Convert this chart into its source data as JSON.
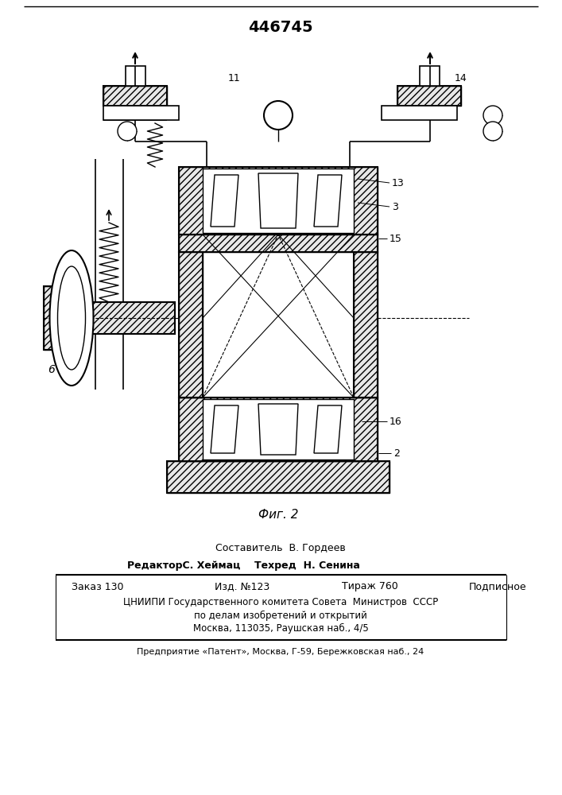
{
  "patent_number": "446745",
  "fig_label": "Фиг. 2",
  "sestavitel_label": "Составитель",
  "sestavitel_name": "В. Гордеев",
  "redaktor_label": "Редактор",
  "redaktor_name": "С. Хеймац",
  "tehred_label": "Техред",
  "tehred_name": "Н. Сенина",
  "zakaz_label": "Заказ",
  "zakaz_num": "130",
  "izd_label": "Изд. №",
  "izd_num": "123",
  "tirazh_label": "Тираж",
  "tirazh_num": "760",
  "podpisnoe": "Подписное",
  "org_line1": "ЦНИИПИ Государственного комитета Совета  Министров  СССР",
  "org_line2": "по делам изобретений и открытий",
  "org_line3": "Москва, 113035, Раушская наб., 4/5",
  "predpr": "Предприятие «Патент», Москва, Г-59, Бережковская наб., 24",
  "bg_color": "#ffffff",
  "line_color": "#000000",
  "hatch_color": "#000000"
}
